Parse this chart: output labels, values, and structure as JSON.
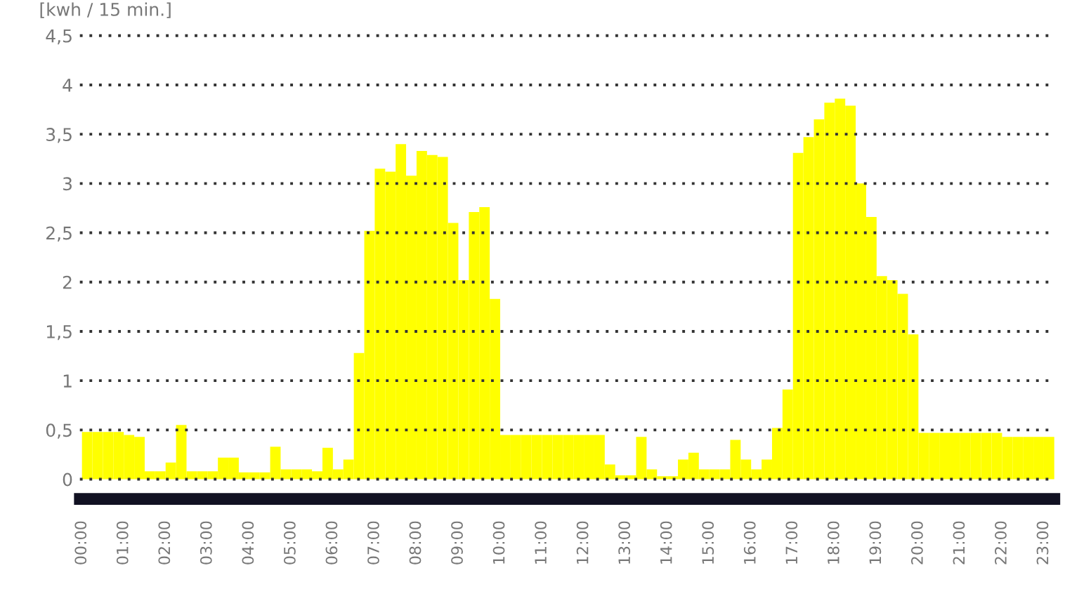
{
  "chart_data": {
    "type": "bar",
    "ylabel": "[kwh / 15 min.]",
    "x": [
      0.125,
      0.375,
      0.625,
      0.875,
      1.125,
      1.375,
      1.625,
      1.875,
      2.125,
      2.375,
      2.625,
      2.875,
      3.125,
      3.375,
      3.625,
      3.875,
      4.125,
      4.375,
      4.625,
      4.875,
      5.125,
      5.375,
      5.625,
      5.875,
      6.125,
      6.375,
      6.625,
      6.875,
      7.125,
      7.375,
      7.625,
      7.875,
      8.125,
      8.375,
      8.625,
      8.875,
      9.125,
      9.375,
      9.625,
      9.875,
      10.125,
      10.375,
      10.625,
      10.875,
      11.125,
      11.375,
      11.625,
      11.875,
      12.125,
      12.375,
      12.625,
      12.875,
      13.125,
      13.375,
      13.625,
      13.875,
      14.125,
      14.375,
      14.625,
      14.875,
      15.125,
      15.375,
      15.625,
      15.875,
      16.125,
      16.375,
      16.625,
      16.875,
      17.125,
      17.375,
      17.625,
      17.875,
      18.125,
      18.375,
      18.625,
      18.875,
      19.125,
      19.375,
      19.625,
      19.875,
      20.125,
      20.375,
      20.625,
      20.875,
      21.125,
      21.375,
      21.625,
      21.875,
      22.125,
      22.375,
      22.625,
      22.875,
      23.125
    ],
    "values": [
      0.48,
      0.48,
      0.48,
      0.48,
      0.45,
      0.43,
      0.08,
      0.08,
      0.17,
      0.55,
      0.08,
      0.08,
      0.08,
      0.22,
      0.22,
      0.07,
      0.07,
      0.07,
      0.33,
      0.1,
      0.1,
      0.1,
      0.08,
      0.32,
      0.1,
      0.2,
      1.28,
      2.52,
      3.15,
      3.12,
      3.4,
      3.08,
      3.33,
      3.29,
      3.27,
      2.6,
      2.02,
      2.71,
      2.76,
      1.83,
      0.45,
      0.45,
      0.45,
      0.45,
      0.45,
      0.45,
      0.45,
      0.45,
      0.45,
      0.45,
      0.15,
      0.04,
      0.04,
      0.43,
      0.1,
      0.03,
      0.03,
      0.2,
      0.27,
      0.1,
      0.1,
      0.1,
      0.4,
      0.2,
      0.1,
      0.2,
      0.52,
      0.91,
      3.31,
      3.47,
      3.65,
      3.82,
      3.86,
      3.79,
      3.0,
      2.66,
      2.06,
      2.02,
      1.88,
      1.47,
      0.47,
      0.47,
      0.47,
      0.47,
      0.47,
      0.47,
      0.47,
      0.47,
      0.43,
      0.43,
      0.43,
      0.43,
      0.43
    ],
    "color": "#ffff00",
    "xlim": [
      -0.05,
      23.25
    ],
    "xticks": [
      {
        "value": 0,
        "label": "00:00"
      },
      {
        "value": 1,
        "label": "01:00"
      },
      {
        "value": 2,
        "label": "02:00"
      },
      {
        "value": 3,
        "label": "03:00"
      },
      {
        "value": 4,
        "label": "04:00"
      },
      {
        "value": 5,
        "label": "05:00"
      },
      {
        "value": 6,
        "label": "06:00"
      },
      {
        "value": 7,
        "label": "07:00"
      },
      {
        "value": 8,
        "label": "08:00"
      },
      {
        "value": 9,
        "label": "09:00"
      },
      {
        "value": 10,
        "label": "10:00"
      },
      {
        "value": 11,
        "label": "11:00"
      },
      {
        "value": 12,
        "label": "12:00"
      },
      {
        "value": 13,
        "label": "13:00"
      },
      {
        "value": 14,
        "label": "14:00"
      },
      {
        "value": 15,
        "label": "15:00"
      },
      {
        "value": 16,
        "label": "16:00"
      },
      {
        "value": 17,
        "label": "17:00"
      },
      {
        "value": 18,
        "label": "18:00"
      },
      {
        "value": 19,
        "label": "19:00"
      },
      {
        "value": 20,
        "label": "20:00"
      },
      {
        "value": 21,
        "label": "21:00"
      },
      {
        "value": 22,
        "label": "22:00"
      },
      {
        "value": 23,
        "label": "23:00"
      }
    ],
    "ylim": [
      -0.2,
      4.5
    ],
    "yticks": [
      0,
      {
        "value": 0.5,
        "label": "0,5"
      },
      1,
      {
        "value": 1.5,
        "label": "1,5"
      },
      2,
      {
        "value": 2.5,
        "label": "2,5"
      },
      3,
      {
        "value": 3.5,
        "label": "3,5"
      },
      4,
      {
        "value": 4.5,
        "label": "4,5"
      }
    ],
    "grid": "y"
  }
}
